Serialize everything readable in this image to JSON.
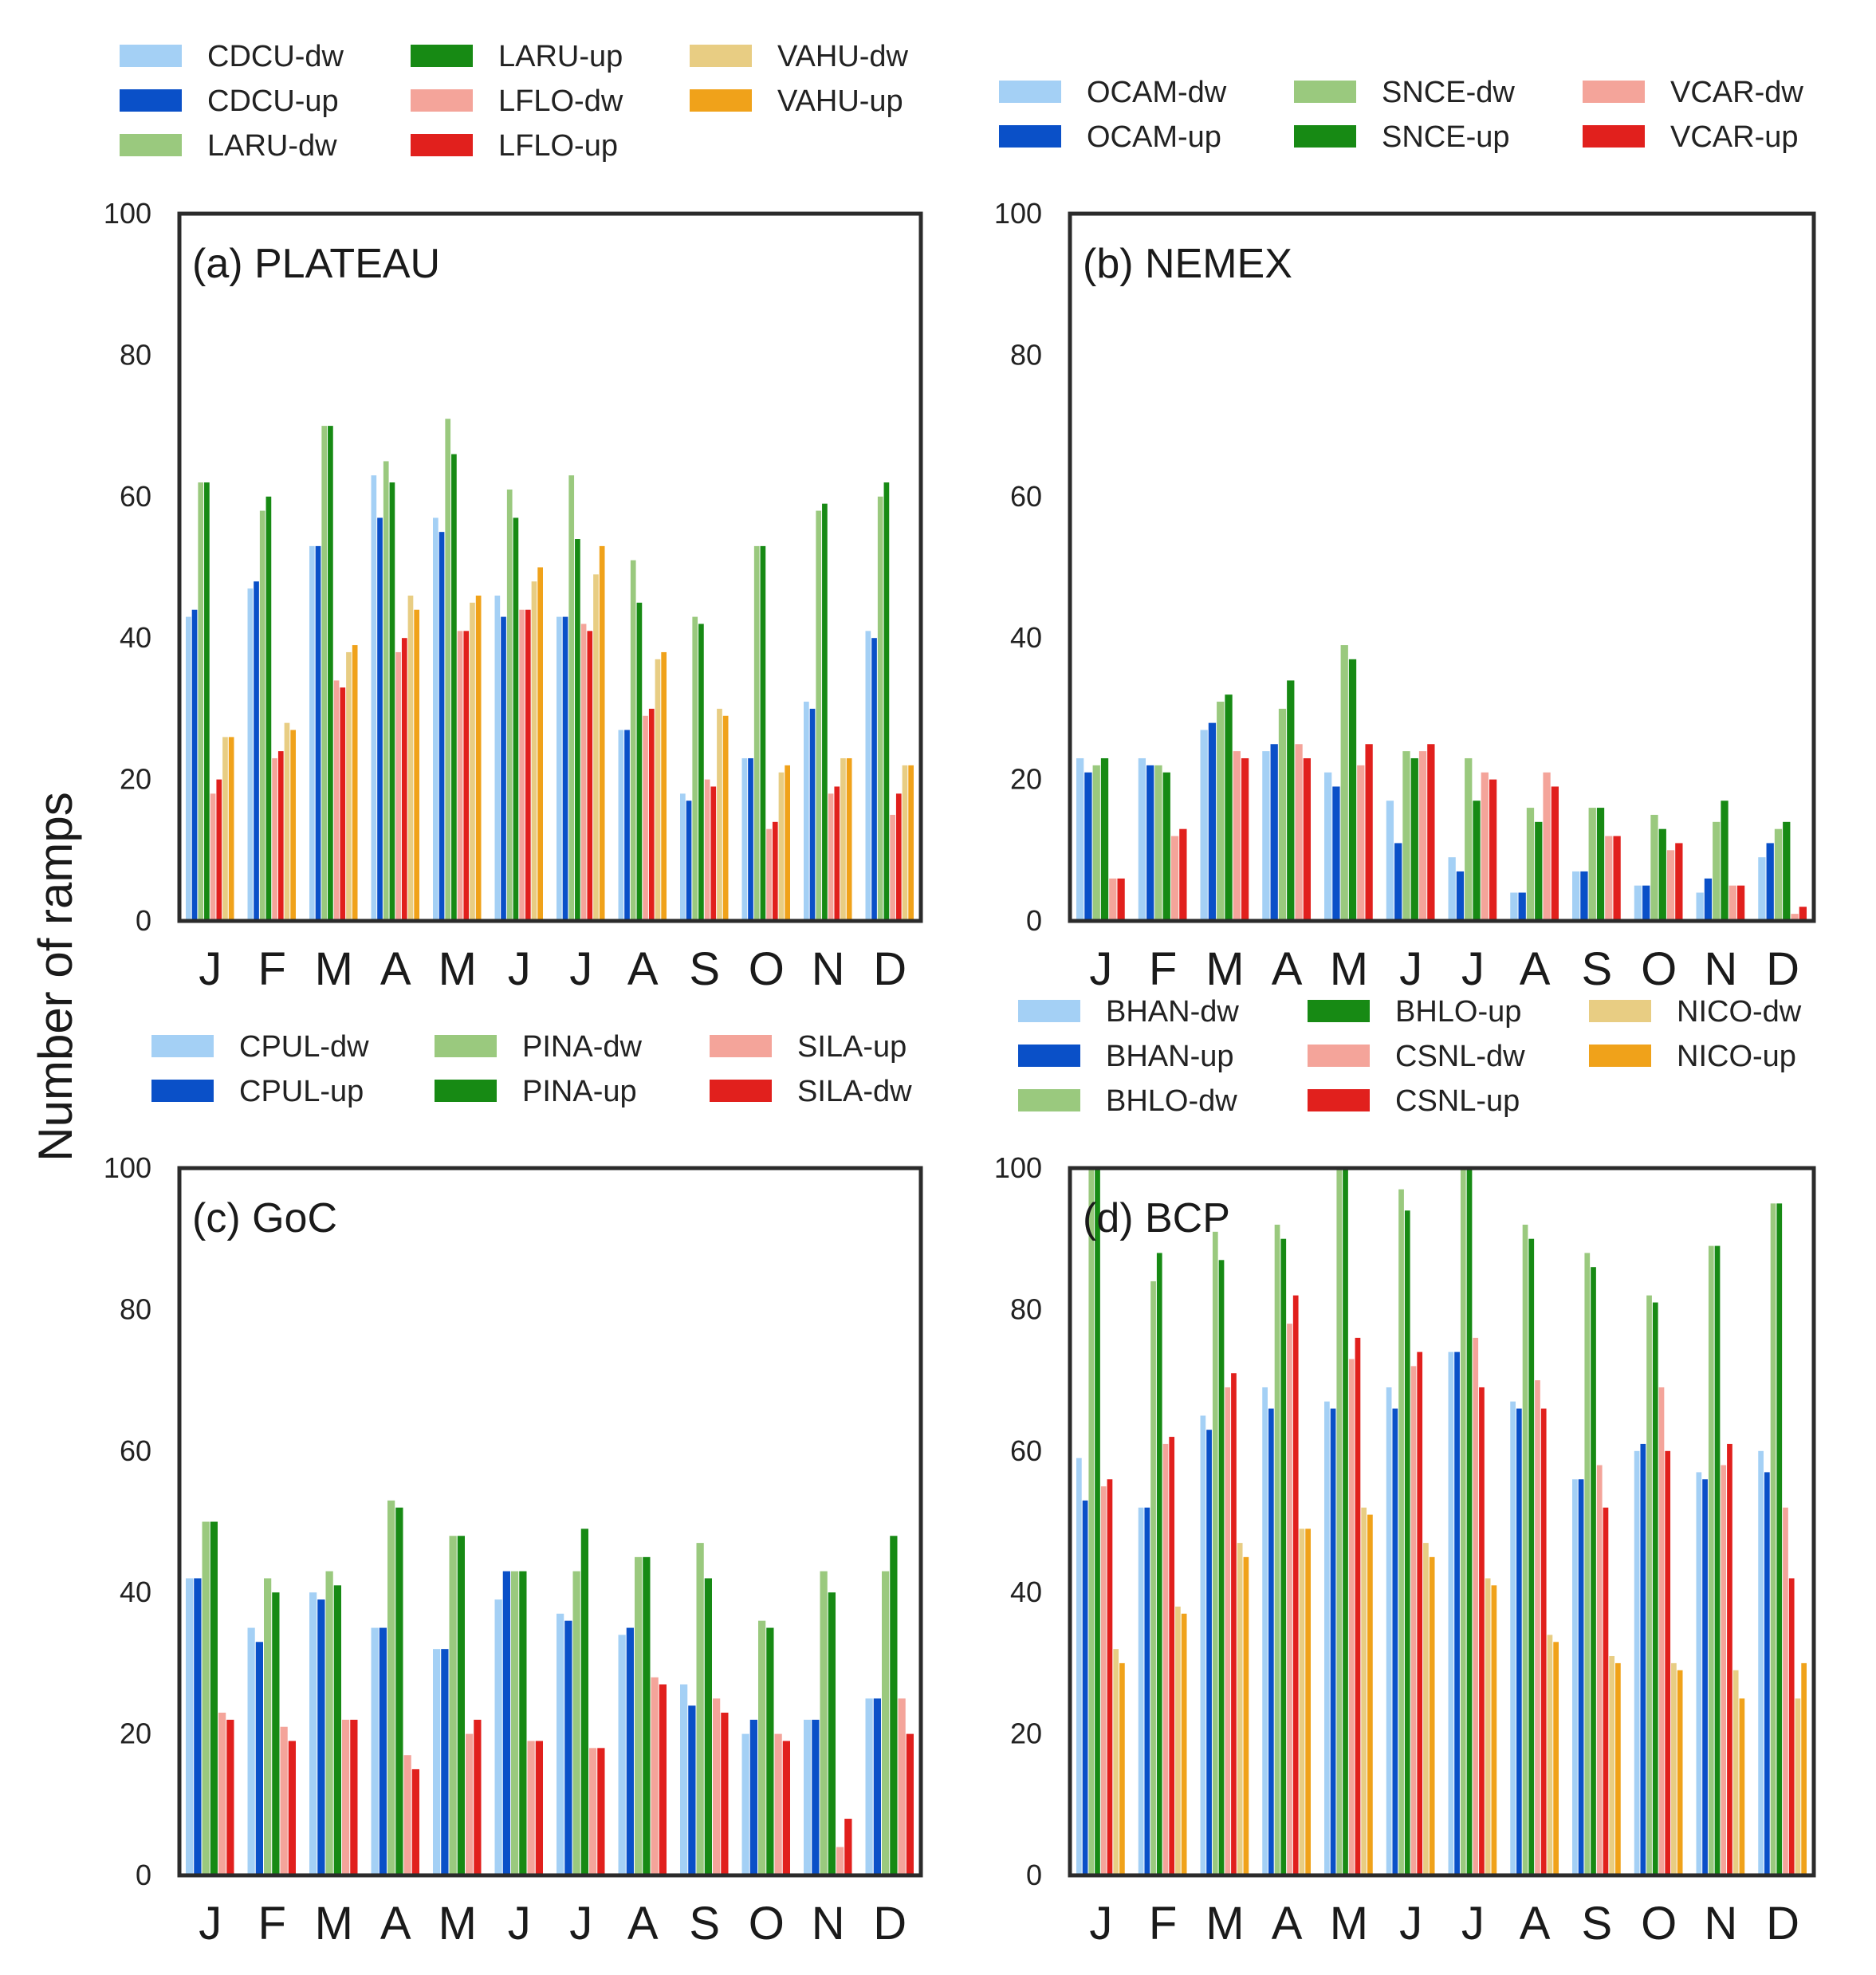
{
  "figure": {
    "ylabel": "Number of ramps"
  },
  "colors": {
    "light_blue": "#a4d0f5",
    "blue": "#0a50c8",
    "light_green": "#9ac97e",
    "green": "#178a14",
    "pink": "#f4a49a",
    "red": "#e1201d",
    "tan": "#e8cd83",
    "orange": "#f0a21a"
  },
  "chart_data": [
    {
      "type": "bar",
      "title": "(a) PLATEAU",
      "ylabel": "Number of ramps",
      "xlabel": "",
      "ylim": [
        0,
        100
      ],
      "yticks": [
        0,
        20,
        40,
        60,
        80,
        100
      ],
      "categories": [
        "J",
        "F",
        "M",
        "A",
        "M",
        "J",
        "J",
        "A",
        "S",
        "O",
        "N",
        "D"
      ],
      "series": [
        {
          "name": "CDCU-dw",
          "color": "#a4d0f5",
          "values": [
            43,
            47,
            53,
            63,
            57,
            46,
            43,
            27,
            18,
            23,
            31,
            41
          ]
        },
        {
          "name": "CDCU-up",
          "color": "#0a50c8",
          "values": [
            44,
            48,
            53,
            57,
            55,
            43,
            43,
            27,
            17,
            23,
            30,
            40
          ]
        },
        {
          "name": "LARU-dw",
          "color": "#9ac97e",
          "values": [
            62,
            58,
            70,
            65,
            71,
            61,
            63,
            51,
            43,
            53,
            58,
            60
          ]
        },
        {
          "name": "LARU-up",
          "color": "#178a14",
          "values": [
            62,
            60,
            70,
            62,
            66,
            57,
            54,
            45,
            42,
            53,
            59,
            62
          ]
        },
        {
          "name": "LFLO-dw",
          "color": "#f4a49a",
          "values": [
            18,
            23,
            34,
            38,
            41,
            44,
            42,
            29,
            20,
            13,
            18,
            15
          ]
        },
        {
          "name": "LFLO-up",
          "color": "#e1201d",
          "values": [
            20,
            24,
            33,
            40,
            41,
            44,
            41,
            30,
            19,
            14,
            19,
            18
          ]
        },
        {
          "name": "VAHU-dw",
          "color": "#e8cd83",
          "values": [
            26,
            28,
            38,
            46,
            45,
            48,
            49,
            37,
            30,
            21,
            23,
            22
          ]
        },
        {
          "name": "VAHU-up",
          "color": "#f0a21a",
          "values": [
            26,
            27,
            39,
            44,
            46,
            50,
            53,
            38,
            29,
            22,
            23,
            22
          ]
        }
      ]
    },
    {
      "type": "bar",
      "title": "(b) NEMEX",
      "xlabel": "",
      "ylim": [
        0,
        100
      ],
      "yticks": [
        0,
        20,
        40,
        60,
        80,
        100
      ],
      "categories": [
        "J",
        "F",
        "M",
        "A",
        "M",
        "J",
        "J",
        "A",
        "S",
        "O",
        "N",
        "D"
      ],
      "series": [
        {
          "name": "OCAM-dw",
          "color": "#a4d0f5",
          "values": [
            23,
            23,
            27,
            24,
            21,
            17,
            9,
            4,
            7,
            5,
            4,
            9
          ]
        },
        {
          "name": "OCAM-up",
          "color": "#0a50c8",
          "values": [
            21,
            22,
            28,
            25,
            19,
            11,
            7,
            4,
            7,
            5,
            6,
            11
          ]
        },
        {
          "name": "SNCE-dw",
          "color": "#9ac97e",
          "values": [
            22,
            22,
            31,
            30,
            39,
            24,
            23,
            16,
            16,
            15,
            14,
            13
          ]
        },
        {
          "name": "SNCE-up",
          "color": "#178a14",
          "values": [
            23,
            21,
            32,
            34,
            37,
            23,
            17,
            14,
            16,
            13,
            17,
            14
          ]
        },
        {
          "name": "VCAR-dw",
          "color": "#f4a49a",
          "values": [
            6,
            12,
            24,
            25,
            22,
            24,
            21,
            21,
            12,
            10,
            5,
            1
          ]
        },
        {
          "name": "VCAR-up",
          "color": "#e1201d",
          "values": [
            6,
            13,
            23,
            23,
            25,
            25,
            20,
            19,
            12,
            11,
            5,
            2
          ]
        }
      ]
    },
    {
      "type": "bar",
      "title": "(c) GoC",
      "xlabel": "",
      "ylim": [
        0,
        100
      ],
      "yticks": [
        0,
        20,
        40,
        60,
        80,
        100
      ],
      "categories": [
        "J",
        "F",
        "M",
        "A",
        "M",
        "J",
        "J",
        "A",
        "S",
        "O",
        "N",
        "D"
      ],
      "series": [
        {
          "name": "CPUL-dw",
          "color": "#a4d0f5",
          "values": [
            42,
            35,
            40,
            35,
            32,
            39,
            37,
            34,
            27,
            20,
            22,
            25
          ]
        },
        {
          "name": "CPUL-up",
          "color": "#0a50c8",
          "values": [
            42,
            33,
            39,
            35,
            32,
            43,
            36,
            35,
            24,
            22,
            22,
            25
          ]
        },
        {
          "name": "PINA-dw",
          "color": "#9ac97e",
          "values": [
            50,
            42,
            43,
            53,
            48,
            43,
            43,
            45,
            47,
            36,
            43,
            43
          ]
        },
        {
          "name": "PINA-up",
          "color": "#178a14",
          "values": [
            50,
            40,
            41,
            52,
            48,
            43,
            49,
            45,
            42,
            35,
            40,
            48
          ]
        },
        {
          "name": "SILA-up",
          "color": "#f4a49a",
          "values": [
            23,
            21,
            22,
            17,
            20,
            19,
            18,
            28,
            25,
            20,
            4,
            25
          ]
        },
        {
          "name": "SILA-dw",
          "color": "#e1201d",
          "values": [
            22,
            19,
            22,
            15,
            22,
            19,
            18,
            27,
            23,
            19,
            8,
            20
          ]
        }
      ]
    },
    {
      "type": "bar",
      "title": "(d) BCP",
      "xlabel": "",
      "ylim": [
        0,
        100
      ],
      "yticks": [
        0,
        20,
        40,
        60,
        80,
        100
      ],
      "categories": [
        "J",
        "F",
        "M",
        "A",
        "M",
        "J",
        "J",
        "A",
        "S",
        "O",
        "N",
        "D"
      ],
      "series": [
        {
          "name": "BHAN-dw",
          "color": "#a4d0f5",
          "values": [
            59,
            52,
            65,
            69,
            67,
            69,
            74,
            67,
            56,
            60,
            57,
            60
          ]
        },
        {
          "name": "BHAN-up",
          "color": "#0a50c8",
          "values": [
            53,
            52,
            63,
            66,
            66,
            66,
            74,
            66,
            56,
            61,
            56,
            57
          ]
        },
        {
          "name": "BHLO-dw",
          "color": "#9ac97e",
          "values": [
            100,
            84,
            91,
            92,
            104,
            97,
            101,
            92,
            88,
            82,
            89,
            95
          ]
        },
        {
          "name": "BHLO-up",
          "color": "#178a14",
          "values": [
            100,
            88,
            87,
            90,
            100,
            94,
            101,
            90,
            86,
            81,
            89,
            95
          ]
        },
        {
          "name": "CSNL-dw",
          "color": "#f4a49a",
          "values": [
            55,
            61,
            69,
            78,
            73,
            72,
            76,
            70,
            58,
            69,
            58,
            52
          ]
        },
        {
          "name": "CSNL-up",
          "color": "#e1201d",
          "values": [
            56,
            62,
            71,
            82,
            76,
            74,
            69,
            66,
            52,
            60,
            61,
            42
          ]
        },
        {
          "name": "NICO-dw",
          "color": "#e8cd83",
          "values": [
            32,
            38,
            47,
            49,
            52,
            47,
            42,
            34,
            31,
            30,
            29,
            25
          ]
        },
        {
          "name": "NICO-up",
          "color": "#f0a21a",
          "values": [
            30,
            37,
            45,
            49,
            51,
            45,
            41,
            33,
            30,
            29,
            25,
            30
          ]
        }
      ]
    }
  ]
}
